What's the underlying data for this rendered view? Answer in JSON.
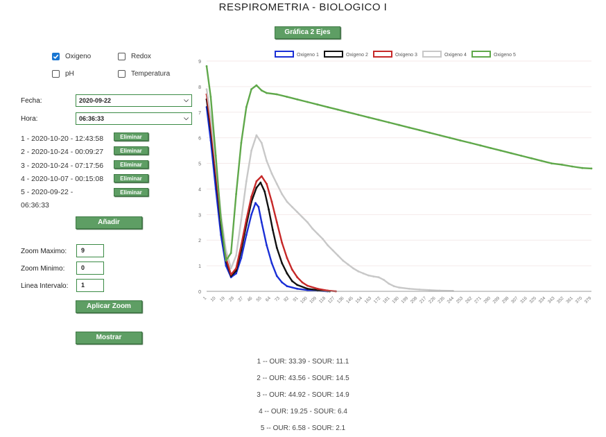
{
  "title": "RESPIROMETRIA - BIOLOGICO I",
  "top_button": "Gráfica 2 Ejes",
  "checks": [
    {
      "label": "Oxigeno",
      "checked": true
    },
    {
      "label": "Redox",
      "checked": false
    },
    {
      "label": "pH",
      "checked": false
    },
    {
      "label": "Temperatura",
      "checked": false
    }
  ],
  "fecha": {
    "label": "Fecha:",
    "value": "2020-09-22"
  },
  "hora": {
    "label": "Hora:",
    "value": "06:36:33"
  },
  "entries": [
    {
      "text": "1 - 2020-10-20 - 12:43:58",
      "button": "Eliminar"
    },
    {
      "text": "2 - 2020-10-24 - 00:09:27",
      "button": "Eliminar"
    },
    {
      "text": "3 - 2020-10-24 - 07:17:56",
      "button": "Eliminar"
    },
    {
      "text": "4 - 2020-10-07 - 00:15:08",
      "button": "Eliminar"
    },
    {
      "text": "5 - 2020-09-22 -",
      "text2": "06:36:33",
      "button": "Eliminar"
    }
  ],
  "add_button": "Añadir",
  "zoom": {
    "max_label": "Zoom Maximo:",
    "max_value": "9",
    "min_label": "Zoom Minimo:",
    "min_value": "0",
    "interval_label": "Linea Intervalo:",
    "interval_value": "1",
    "apply_button": "Aplicar Zoom"
  },
  "show_button": "Mostrar",
  "results": [
    "1 -- OUR: 33.39 - SOUR: 11.1",
    "2 -- OUR: 43.56 - SOUR: 14.5",
    "3 -- OUR: 44.92 - SOUR: 14.9",
    "4 -- OUR: 19.25 - SOUR: 6.4",
    "5 -- OUR: 6.58 - SOUR: 2.1"
  ],
  "chart_data": {
    "type": "line",
    "ylim": [
      0,
      9
    ],
    "yticks": [
      "0",
      "1",
      "2",
      "3",
      "4",
      "5",
      "6",
      "7",
      "8",
      "9"
    ],
    "xticks": [
      "1",
      "10",
      "19",
      "28",
      "37",
      "46",
      "55",
      "64",
      "73",
      "82",
      "91",
      "100",
      "109",
      "118",
      "127",
      "136",
      "145",
      "154",
      "163",
      "172",
      "181",
      "190",
      "199",
      "208",
      "217",
      "226",
      "235",
      "244",
      "253",
      "262",
      "271",
      "280",
      "289",
      "298",
      "307",
      "316",
      "325",
      "334",
      "343",
      "352",
      "361",
      "370",
      "379"
    ],
    "xlim": [
      1,
      379
    ],
    "grid": true,
    "legend": "top",
    "series": [
      {
        "name": "Oxigeno 1",
        "color": "#1a2fd6",
        "points": [
          [
            1,
            7.2
          ],
          [
            5,
            5.9
          ],
          [
            10,
            4.0
          ],
          [
            15,
            2.2
          ],
          [
            20,
            1.0
          ],
          [
            25,
            0.55
          ],
          [
            30,
            0.7
          ],
          [
            35,
            1.3
          ],
          [
            40,
            2.2
          ],
          [
            45,
            3.0
          ],
          [
            49,
            3.45
          ],
          [
            52,
            3.3
          ],
          [
            55,
            2.7
          ],
          [
            60,
            1.8
          ],
          [
            65,
            1.1
          ],
          [
            70,
            0.6
          ],
          [
            75,
            0.35
          ],
          [
            80,
            0.2
          ],
          [
            90,
            0.1
          ],
          [
            100,
            0.05
          ],
          [
            110,
            0.02
          ],
          [
            120,
            0.0
          ]
        ]
      },
      {
        "name": "Oxigeno 2",
        "color": "#111111",
        "points": [
          [
            1,
            7.5
          ],
          [
            5,
            6.3
          ],
          [
            10,
            4.5
          ],
          [
            15,
            2.6
          ],
          [
            20,
            1.2
          ],
          [
            25,
            0.6
          ],
          [
            30,
            0.8
          ],
          [
            35,
            1.6
          ],
          [
            40,
            2.6
          ],
          [
            45,
            3.5
          ],
          [
            50,
            4.05
          ],
          [
            54,
            4.25
          ],
          [
            58,
            3.9
          ],
          [
            62,
            3.2
          ],
          [
            66,
            2.4
          ],
          [
            70,
            1.7
          ],
          [
            75,
            1.1
          ],
          [
            80,
            0.7
          ],
          [
            85,
            0.4
          ],
          [
            90,
            0.25
          ],
          [
            100,
            0.1
          ],
          [
            110,
            0.05
          ],
          [
            122,
            0.0
          ]
        ]
      },
      {
        "name": "Oxigeno 3",
        "color": "#c62828",
        "points": [
          [
            1,
            7.7
          ],
          [
            5,
            6.5
          ],
          [
            10,
            4.7
          ],
          [
            15,
            2.8
          ],
          [
            20,
            1.3
          ],
          [
            25,
            0.65
          ],
          [
            30,
            0.9
          ],
          [
            35,
            1.8
          ],
          [
            40,
            2.8
          ],
          [
            45,
            3.7
          ],
          [
            50,
            4.3
          ],
          [
            55,
            4.5
          ],
          [
            60,
            4.2
          ],
          [
            65,
            3.5
          ],
          [
            70,
            2.7
          ],
          [
            75,
            1.9
          ],
          [
            80,
            1.3
          ],
          [
            85,
            0.85
          ],
          [
            90,
            0.55
          ],
          [
            95,
            0.35
          ],
          [
            100,
            0.22
          ],
          [
            110,
            0.1
          ],
          [
            120,
            0.03
          ],
          [
            128,
            0.0
          ]
        ]
      },
      {
        "name": "Oxigeno 4",
        "color": "#c8c8c8",
        "points": [
          [
            1,
            7.9
          ],
          [
            5,
            6.8
          ],
          [
            10,
            5.0
          ],
          [
            15,
            3.0
          ],
          [
            20,
            1.6
          ],
          [
            25,
            0.9
          ],
          [
            30,
            1.4
          ],
          [
            35,
            2.8
          ],
          [
            40,
            4.3
          ],
          [
            45,
            5.5
          ],
          [
            50,
            6.1
          ],
          [
            55,
            5.8
          ],
          [
            60,
            5.1
          ],
          [
            65,
            4.6
          ],
          [
            70,
            4.2
          ],
          [
            75,
            3.8
          ],
          [
            80,
            3.5
          ],
          [
            85,
            3.3
          ],
          [
            90,
            3.1
          ],
          [
            95,
            2.9
          ],
          [
            100,
            2.7
          ],
          [
            105,
            2.45
          ],
          [
            110,
            2.25
          ],
          [
            115,
            2.05
          ],
          [
            120,
            1.8
          ],
          [
            125,
            1.6
          ],
          [
            130,
            1.4
          ],
          [
            135,
            1.2
          ],
          [
            140,
            1.05
          ],
          [
            145,
            0.9
          ],
          [
            150,
            0.78
          ],
          [
            155,
            0.7
          ],
          [
            160,
            0.62
          ],
          [
            165,
            0.58
          ],
          [
            170,
            0.55
          ],
          [
            175,
            0.45
          ],
          [
            180,
            0.3
          ],
          [
            185,
            0.2
          ],
          [
            190,
            0.15
          ],
          [
            200,
            0.1
          ],
          [
            210,
            0.07
          ],
          [
            220,
            0.05
          ],
          [
            230,
            0.03
          ],
          [
            243,
            0.02
          ]
        ]
      },
      {
        "name": "Oxigeno 5",
        "color": "#5fa84a",
        "points": [
          [
            1,
            8.8
          ],
          [
            5,
            7.6
          ],
          [
            10,
            5.3
          ],
          [
            15,
            2.8
          ],
          [
            20,
            1.2
          ],
          [
            25,
            1.5
          ],
          [
            30,
            3.8
          ],
          [
            35,
            5.8
          ],
          [
            40,
            7.2
          ],
          [
            45,
            7.9
          ],
          [
            50,
            8.05
          ],
          [
            55,
            7.85
          ],
          [
            60,
            7.75
          ],
          [
            70,
            7.7
          ],
          [
            80,
            7.6
          ],
          [
            90,
            7.5
          ],
          [
            100,
            7.4
          ],
          [
            110,
            7.3
          ],
          [
            120,
            7.2
          ],
          [
            130,
            7.1
          ],
          [
            140,
            7.0
          ],
          [
            150,
            6.9
          ],
          [
            160,
            6.8
          ],
          [
            170,
            6.7
          ],
          [
            180,
            6.6
          ],
          [
            190,
            6.5
          ],
          [
            200,
            6.4
          ],
          [
            210,
            6.3
          ],
          [
            220,
            6.2
          ],
          [
            230,
            6.1
          ],
          [
            240,
            6.0
          ],
          [
            250,
            5.9
          ],
          [
            260,
            5.8
          ],
          [
            270,
            5.7
          ],
          [
            280,
            5.6
          ],
          [
            290,
            5.5
          ],
          [
            300,
            5.4
          ],
          [
            310,
            5.3
          ],
          [
            320,
            5.2
          ],
          [
            330,
            5.1
          ],
          [
            340,
            5.0
          ],
          [
            350,
            4.95
          ],
          [
            360,
            4.88
          ],
          [
            370,
            4.82
          ],
          [
            379,
            4.8
          ]
        ]
      }
    ]
  }
}
